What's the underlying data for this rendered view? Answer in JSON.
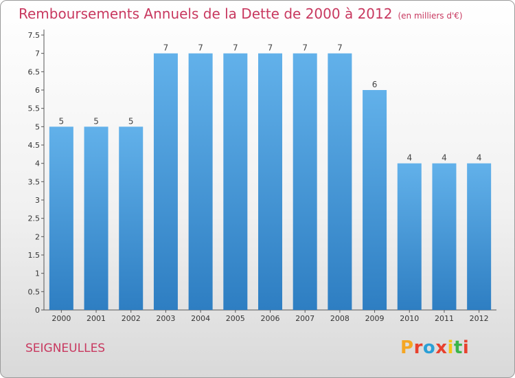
{
  "title": "Remboursements Annuels de la Dette de 2000 à 2012",
  "unit": "(en milliers d'€)",
  "commune": "SEIGNEULLES",
  "logo": {
    "letters": [
      "P",
      "r",
      "o",
      "x",
      "i",
      "t",
      "i"
    ],
    "colors": [
      "#f5a623",
      "#e8412e",
      "#2a9fd6",
      "#e8412e",
      "#f5c518",
      "#3ab54a",
      "#e8412e"
    ]
  },
  "colors": {
    "bar_light": "#62b1ea",
    "bar_dark": "#2e7ec2",
    "title": "#c8385f"
  },
  "chart_data": {
    "type": "bar",
    "categories": [
      "2000",
      "2001",
      "2002",
      "2003",
      "2004",
      "2005",
      "2006",
      "2007",
      "2008",
      "2009",
      "2010",
      "2011",
      "2012"
    ],
    "values": [
      5,
      5,
      5,
      7,
      7,
      7,
      7,
      7,
      7,
      6,
      4,
      4,
      4
    ],
    "data_labels": [
      "5",
      "5",
      "5",
      "7",
      "7",
      "7",
      "7",
      "7",
      "7",
      "6",
      "4",
      "4",
      "4"
    ],
    "ylim": [
      0,
      7.5
    ],
    "yticks": [
      "0",
      "0.5",
      "1",
      "1.5",
      "2",
      "2.5",
      "3",
      "3.5",
      "4",
      "4.5",
      "5",
      "5.5",
      "6",
      "6.5",
      "7",
      "7.5"
    ],
    "grid": false,
    "xlabel": "",
    "ylabel": ""
  }
}
